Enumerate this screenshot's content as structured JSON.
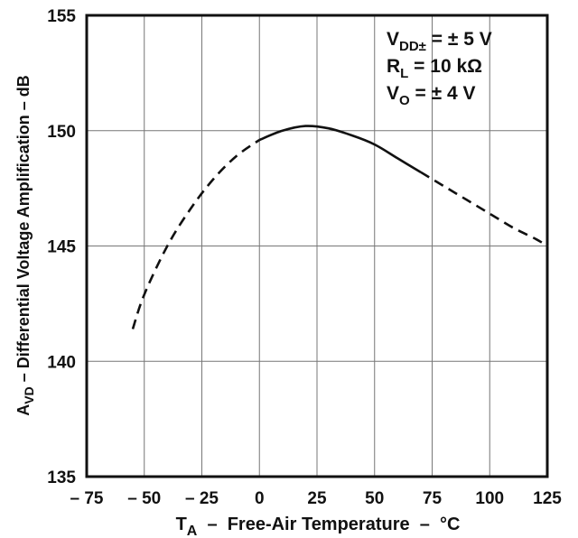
{
  "chart_data": {
    "type": "line",
    "title": "",
    "xlabel": {
      "main": "T",
      "sub": "A",
      "rest": "  –  Free-Air Temperature  –  °C"
    },
    "ylabel": {
      "main": "A",
      "sub": "VD",
      "rest": " – Differential Voltage Amplification – dB"
    },
    "xlim": [
      -75,
      125
    ],
    "ylim": [
      135,
      155
    ],
    "x_ticks": [
      -75,
      -50,
      -25,
      0,
      25,
      50,
      75,
      100,
      125
    ],
    "x_tick_labels": [
      "– 75",
      "– 50",
      "– 25",
      "0",
      "25",
      "50",
      "75",
      "100",
      "125"
    ],
    "y_ticks": [
      135,
      140,
      145,
      150,
      155
    ],
    "y_tick_labels": [
      "135",
      "140",
      "145",
      "150",
      "155"
    ],
    "grid": true,
    "annotations": [
      {
        "main": "V",
        "sub": "DD±",
        "rest": "  =  ± 5 V"
      },
      {
        "main": "R",
        "sub": "L",
        "rest": "  =  10 kΩ"
      },
      {
        "main": "V",
        "sub": "O",
        "rest": "  =  ± 4 V"
      }
    ],
    "series": [
      {
        "style": "dashed",
        "x": [
          -55,
          -50,
          -40,
          -30,
          -20,
          -10,
          0
        ],
        "y": [
          141.4,
          142.9,
          145.0,
          146.6,
          147.9,
          148.9,
          149.6
        ]
      },
      {
        "style": "solid",
        "x": [
          0,
          10,
          20,
          30,
          40,
          50,
          60,
          70
        ],
        "y": [
          149.6,
          150.0,
          150.2,
          150.1,
          149.8,
          149.4,
          148.8,
          148.2
        ]
      },
      {
        "style": "dashed",
        "x": [
          70,
          80,
          90,
          100,
          110,
          120,
          125
        ],
        "y": [
          148.2,
          147.6,
          147.0,
          146.4,
          145.8,
          145.3,
          145.0
        ]
      }
    ]
  }
}
